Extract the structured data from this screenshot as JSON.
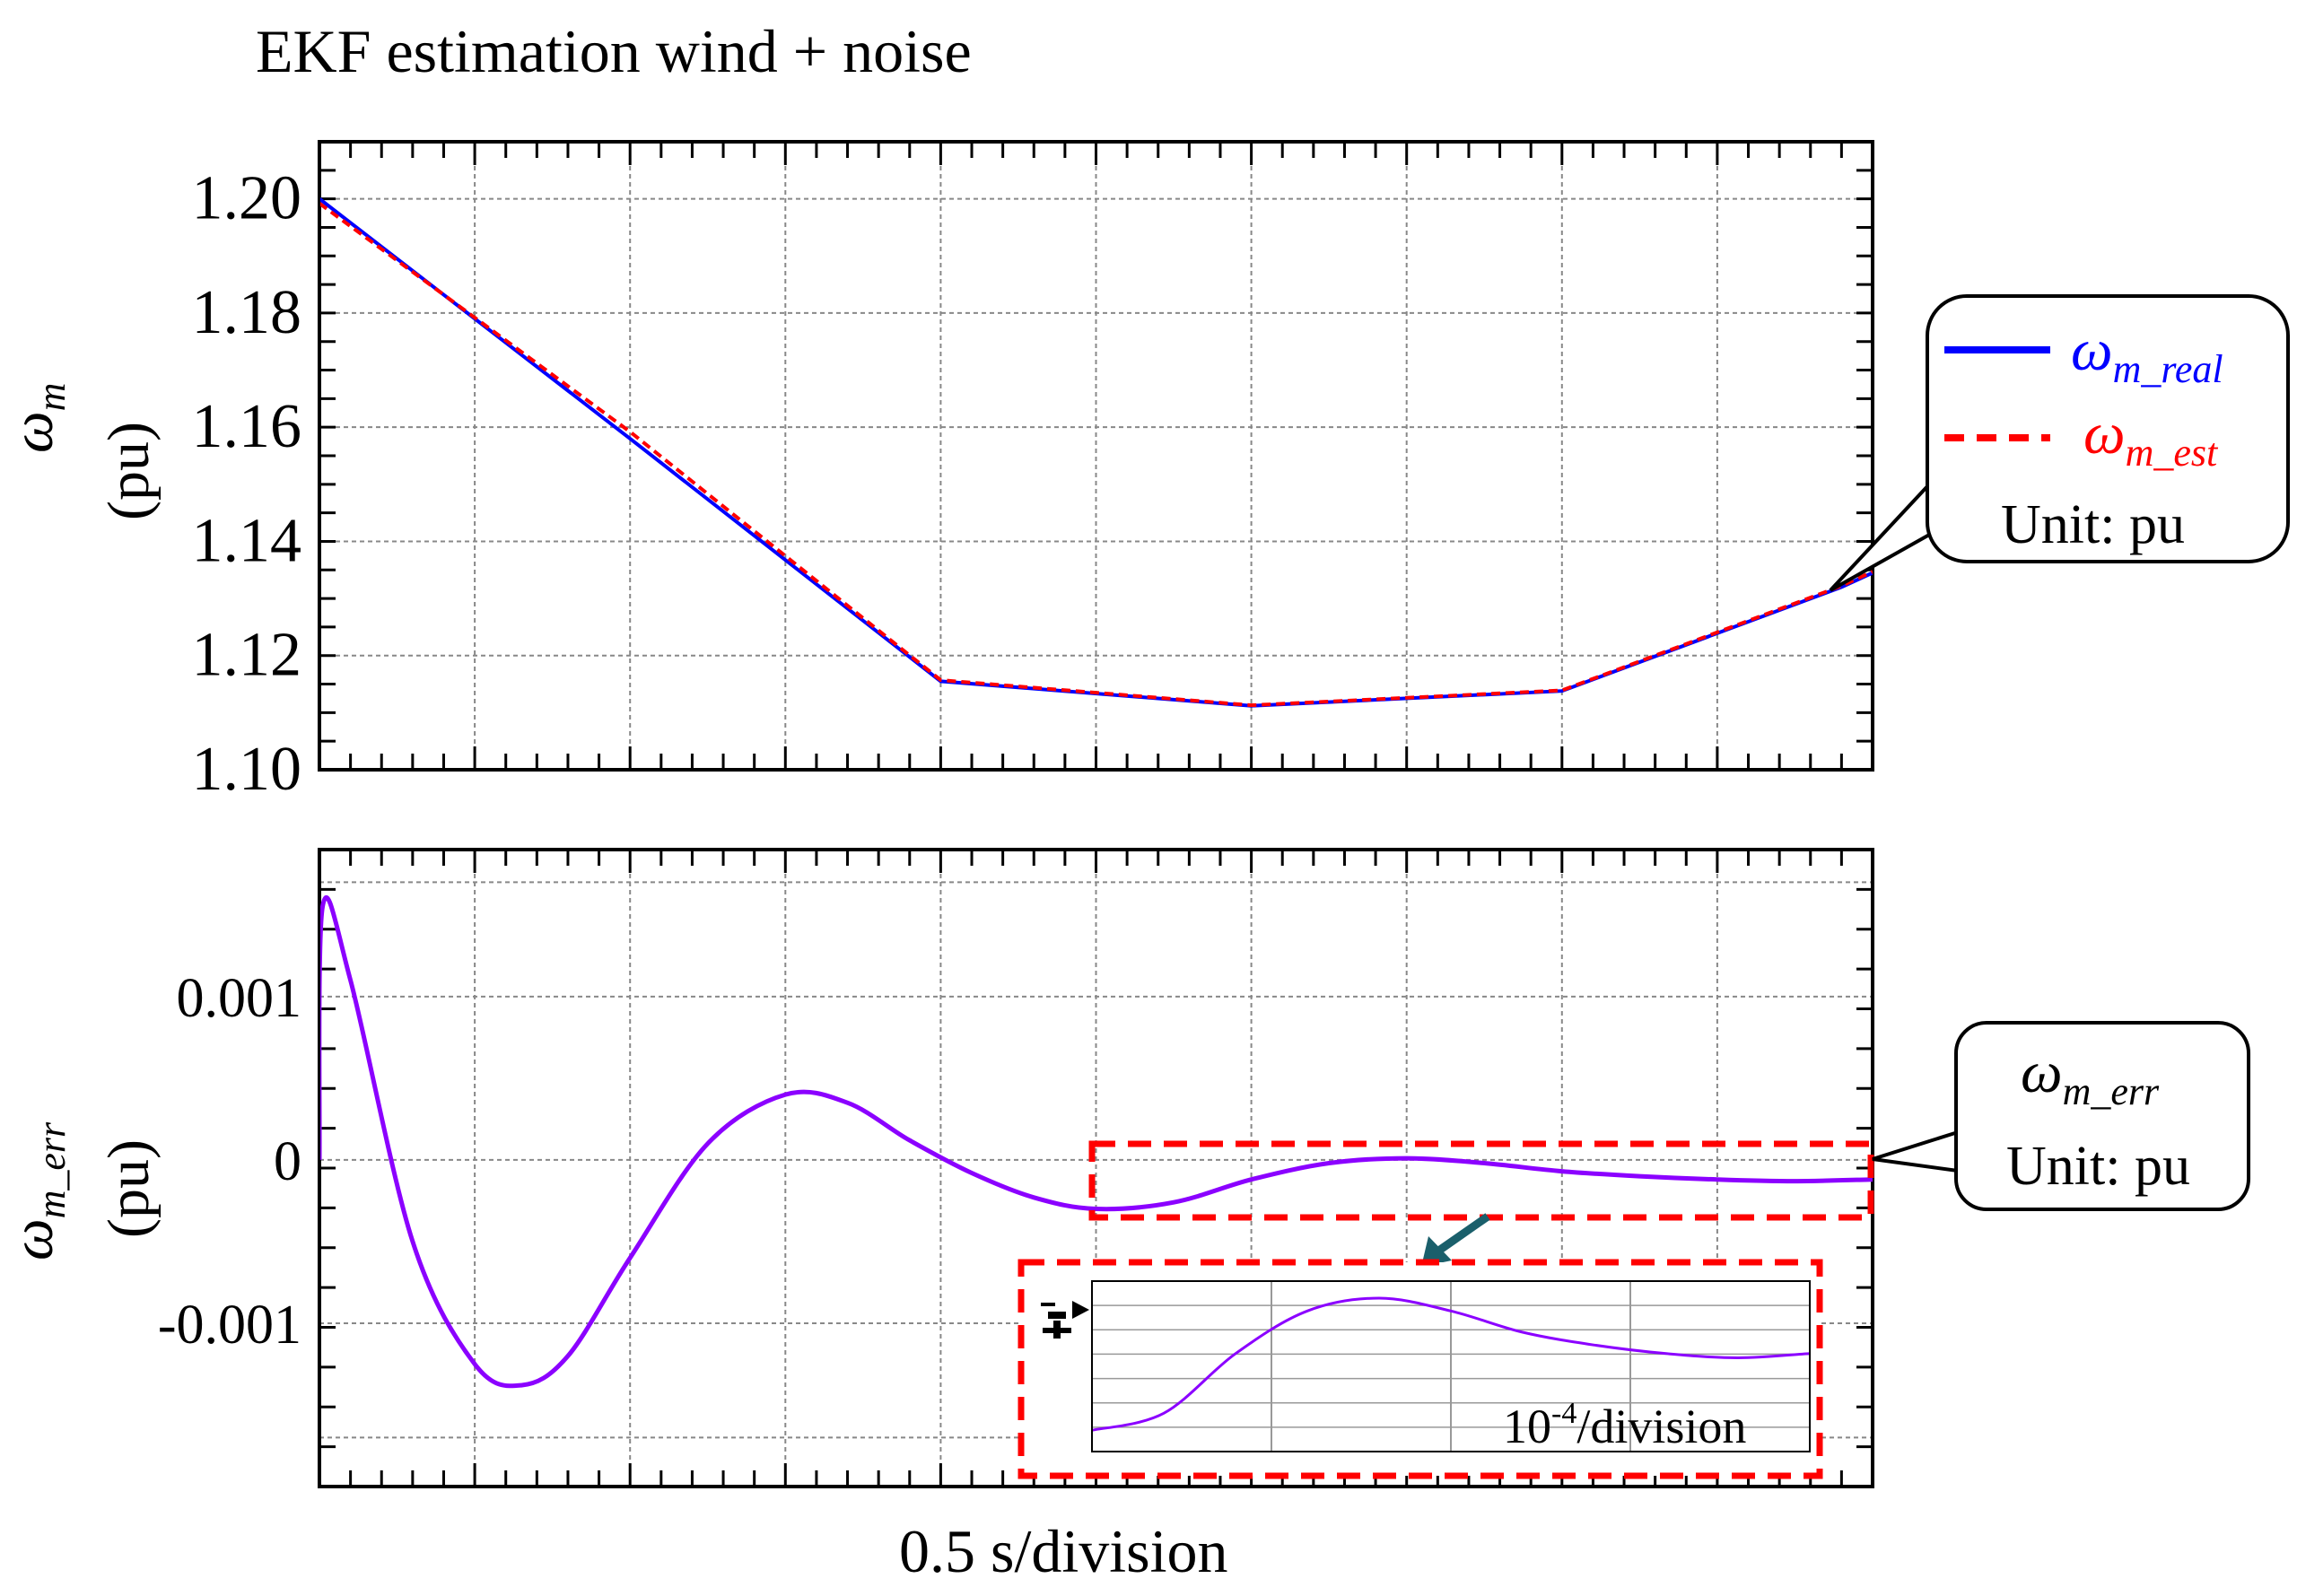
{
  "title": "EKF estimation wind + noise",
  "xlabel": "0.5 s/division",
  "colors": {
    "real": "#0000ff",
    "est": "#ff0000",
    "err": "#8b00ff",
    "callout_arrow": "#1a5f6b"
  },
  "chart_data": [
    {
      "id": "speed",
      "type": "line",
      "ylabel_symbol": "ω",
      "ylabel_sub": "m",
      "ylabel_unit": "(pu)",
      "x_unit": "s",
      "xlim": [
        0,
        5
      ],
      "ylim": [
        1.1,
        1.21
      ],
      "yticks": [
        "1.20",
        "1.18",
        "1.16",
        "1.14",
        "1.12",
        "1.10"
      ],
      "ytick_values": [
        1.2,
        1.18,
        1.16,
        1.14,
        1.12,
        1.1
      ],
      "series": [
        {
          "name": "ω_m_real",
          "style": "solid",
          "x": [
            0,
            1.0,
            2.0,
            3.0,
            4.0,
            4.9,
            5.0
          ],
          "y": [
            1.2,
            1.158,
            1.1155,
            1.1112,
            1.1138,
            1.132,
            1.1345
          ]
        },
        {
          "name": "ω_m_est",
          "style": "dashed",
          "x": [
            0,
            1.0,
            2.0,
            3.0,
            4.0,
            4.9,
            5.0
          ],
          "y": [
            1.1992,
            1.1592,
            1.1157,
            1.1113,
            1.1139,
            1.1322,
            1.1347
          ]
        }
      ],
      "legend": {
        "real_symbol": "ω",
        "real_sub": "m_real",
        "est_symbol": "ω",
        "est_sub": "m_est",
        "unit": "Unit: pu",
        "placement": "right"
      }
    },
    {
      "id": "error",
      "type": "line",
      "ylabel_symbol": "ω",
      "ylabel_sub": "m_err",
      "ylabel_unit": "(pu)",
      "x_unit": "s",
      "xlim": [
        0,
        5
      ],
      "ylim": [
        -0.002,
        0.0019
      ],
      "yticks": [
        "0.001",
        "0",
        "-0.001"
      ],
      "ytick_values": [
        0.001,
        0,
        -0.001
      ],
      "series": [
        {
          "name": "ω_m_err",
          "x": [
            0,
            0.01,
            0.1,
            0.3,
            0.5,
            0.65,
            0.8,
            1.0,
            1.25,
            1.5,
            1.7,
            1.9,
            2.1,
            2.3,
            2.5,
            2.75,
            3.0,
            3.25,
            3.5,
            3.75,
            4.0,
            4.25,
            4.5,
            4.75,
            5.0
          ],
          "y": [
            0,
            0.00155,
            0.0011,
            -0.0005,
            -0.00125,
            -0.00138,
            -0.0012,
            -0.0006,
            0.0001,
            0.0004,
            0.00035,
            0.00012,
            -8e-05,
            -0.00023,
            -0.0003,
            -0.00026,
            -0.00012,
            -2e-05,
            1e-05,
            -2e-05,
            -7e-05,
            -0.0001,
            -0.00012,
            -0.00013,
            -0.00012
          ]
        }
      ],
      "callout": {
        "symbol": "ω",
        "sub": "m_err",
        "unit": "Unit: pu"
      },
      "inset": {
        "scale_label_base": "10",
        "scale_label_exp": "-4",
        "scale_label_suffix": "/division"
      }
    }
  ]
}
